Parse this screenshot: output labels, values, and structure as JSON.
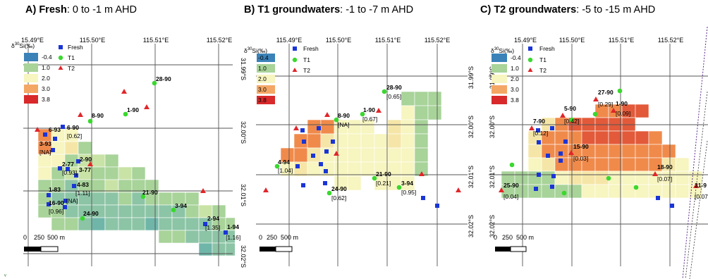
{
  "colors": {
    "fresh": "#1a35d6",
    "t1": "#3ad82e",
    "t2": "#e0262a",
    "grid": "#555555",
    "cell_border": "#ffffff",
    "scale_1": "#3a82b8",
    "scale_2": "#a8d399",
    "scale_3": "#f7f5c0",
    "scale_4": "#f4a765",
    "scale_5": "#d8292b",
    "teal": "#6fb6a9"
  },
  "legend": {
    "title_prefix": "δ",
    "title_sup": "30",
    "title_suffix": "Si(‰)",
    "scale_labels": [
      "-0.4",
      "1.0",
      "2.0",
      "3.0",
      "3.8"
    ],
    "series": [
      {
        "label": "Fresh",
        "symbol": "square-icon"
      },
      {
        "label": "T1",
        "symbol": "circle-icon"
      },
      {
        "label": "T2",
        "symbol": "triangle-icon"
      }
    ]
  },
  "panels": [
    {
      "title_bold": "A) Fresh",
      "title_rest": ": 0 to -1 m AHD",
      "lon_labels": [
        "15.49°E",
        "115.50°E",
        "115.51°E",
        "115.52°E"
      ],
      "lat_labels": [
        "31.99°S",
        "32.00°S",
        "32.01°S",
        "32.02°S"
      ],
      "scale_bar": {
        "ticks": [
          "0",
          "250",
          "500 m"
        ]
      },
      "sites": [
        {
          "type": "fresh",
          "label": "6-93",
          "value": null
        },
        {
          "type": "fresh",
          "label": "6-90",
          "value": "[0.62]"
        },
        {
          "type": "fresh",
          "label": "3-93",
          "value": "[NA]"
        },
        {
          "type": "fresh",
          "label": "2-77",
          "value": "[0.93]"
        },
        {
          "type": "fresh",
          "label": "3-77",
          "value": null
        },
        {
          "type": "fresh",
          "label": "2-90",
          "value": null
        },
        {
          "type": "fresh",
          "label": "4-83",
          "value": "[1.11]"
        },
        {
          "type": "fresh",
          "label": "1-83",
          "value": null
        },
        {
          "type": "fresh",
          "label": "",
          "value": "[NA]"
        },
        {
          "type": "fresh",
          "label": "16-90",
          "value": "[0.96]"
        },
        {
          "type": "fresh",
          "label": "2-94",
          "value": "[1.35]"
        },
        {
          "type": "fresh",
          "label": "1-94",
          "value": "[1.16]"
        },
        {
          "type": "t1",
          "label": "28-90",
          "value": null
        },
        {
          "type": "t1",
          "label": "1-90",
          "value": null
        },
        {
          "type": "t1",
          "label": "8-90",
          "value": null
        },
        {
          "type": "t1",
          "label": "21-90",
          "value": null
        },
        {
          "type": "t1",
          "label": "3-94",
          "value": null
        },
        {
          "type": "t1",
          "label": "24-90",
          "value": null
        }
      ]
    },
    {
      "title_bold": "B) T1 groundwaters",
      "title_rest": ": -1 to -7 m AHD",
      "lon_labels": [
        "115.49°E",
        "115.50°E",
        "115.51°E",
        "115.52°E"
      ],
      "lat_labels": [
        "31.99°S",
        "32.00°S",
        "32.01°S",
        "32.02°S"
      ],
      "scale_bar": {
        "ticks": [
          "0",
          "250",
          "500 m"
        ]
      },
      "sites": [
        {
          "type": "t1",
          "label": "28-90",
          "value": "[0.65]"
        },
        {
          "type": "t1",
          "label": "1-90",
          "value": "[0.67]"
        },
        {
          "type": "t1",
          "label": "8-90",
          "value": "[NA]"
        },
        {
          "type": "t1",
          "label": "4-94",
          "value": "[1.04]"
        },
        {
          "type": "t1",
          "label": "21-90",
          "value": "[0.21]"
        },
        {
          "type": "t1",
          "label": "3-94",
          "value": "[0.95]"
        },
        {
          "type": "t1",
          "label": "24-90",
          "value": "[0.62]"
        }
      ]
    },
    {
      "title_bold": "C) T2 groundwaters",
      "title_rest": ": -5 to -15 m AHD",
      "lon_labels": [
        "15.49°E",
        "115.50°E",
        "115.51°E",
        "115.52°E"
      ],
      "lat_labels": [
        "31.99°S",
        "32.00°S",
        "32.01°S",
        "32.02°S"
      ],
      "scale_bar": {
        "ticks": [
          "0",
          "250",
          "500 m"
        ]
      },
      "sites": [
        {
          "type": "t2",
          "label": "27-90",
          "value": "[0.29]"
        },
        {
          "type": "t2",
          "label": "1-90",
          "value": "[0.09]"
        },
        {
          "type": "t2",
          "label": "5-90",
          "value": "[0.42]"
        },
        {
          "type": "t2",
          "label": "7-90",
          "value": "[0.12]"
        },
        {
          "type": "t2",
          "label": "15-90",
          "value": "[0.03]"
        },
        {
          "type": "t2",
          "label": "18-90",
          "value": "[0.07]"
        },
        {
          "type": "t2",
          "label": "25-90",
          "value": "[0.04]"
        },
        {
          "type": "t2",
          "label": "31-9",
          "value": "[0.07"
        }
      ]
    }
  ]
}
